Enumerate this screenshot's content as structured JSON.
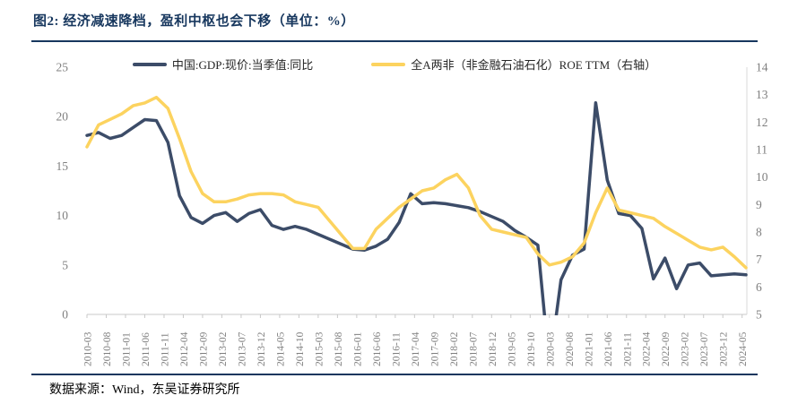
{
  "title": "图2:  经济减速降档，盈利中枢也会下移（单位：%）",
  "footer": {
    "source_label": "数据来源：Wind，东吴证券研究所"
  },
  "colors": {
    "navy_line": "#3C4C68",
    "yellow_line": "#FCD35F",
    "rule": "#17375E",
    "axis_text": "#7F7F7F",
    "axis_line": "#C8C8C8"
  },
  "chart_data": {
    "type": "line",
    "title": "图2: 经济减速降档，盈利中枢也会下移（单位：%）",
    "grid": false,
    "legend_position": "top",
    "x": [
      "2010-03",
      "2010-06",
      "2010-09",
      "2010-12",
      "2011-03",
      "2011-06",
      "2011-09",
      "2011-12",
      "2012-03",
      "2012-06",
      "2012-09",
      "2012-12",
      "2013-03",
      "2013-06",
      "2013-09",
      "2013-12",
      "2014-03",
      "2014-06",
      "2014-09",
      "2014-12",
      "2015-03",
      "2015-06",
      "2015-09",
      "2015-12",
      "2016-03",
      "2016-06",
      "2016-09",
      "2016-12",
      "2017-03",
      "2017-06",
      "2017-09",
      "2017-12",
      "2018-03",
      "2018-06",
      "2018-09",
      "2018-12",
      "2019-03",
      "2019-06",
      "2019-09",
      "2019-12",
      "2020-03",
      "2020-06",
      "2020-09",
      "2020-12",
      "2021-03",
      "2021-06",
      "2021-09",
      "2021-12",
      "2022-03",
      "2022-06",
      "2022-09",
      "2022-12",
      "2023-03",
      "2023-06",
      "2023-09",
      "2023-12",
      "2024-03",
      "2024-06"
    ],
    "x_tick_labels": [
      "2010-03",
      "2010-08",
      "2011-01",
      "2011-06",
      "2011-11",
      "2012-04",
      "2012-09",
      "2013-02",
      "2013-07",
      "2013-12",
      "2014-05",
      "2014-10",
      "2015-03",
      "2015-08",
      "2016-01",
      "2016-06",
      "2016-11",
      "2017-04",
      "2017-09",
      "2018-02",
      "2018-07",
      "2018-12",
      "2019-05",
      "2019-10",
      "2020-03",
      "2020-08",
      "2021-01",
      "2021-06",
      "2021-11",
      "2022-04",
      "2022-09",
      "2023-02",
      "2023-07",
      "2023-12",
      "2024-05"
    ],
    "left_axis": {
      "min": 0,
      "max": 25,
      "ticks": [
        25,
        20,
        15,
        10,
        5,
        0
      ]
    },
    "right_axis": {
      "min": 5,
      "max": 14,
      "ticks": [
        14,
        13,
        12,
        11,
        10,
        9,
        8,
        7,
        6,
        5
      ]
    },
    "series": [
      {
        "name": "中国:GDP:现价:当季值:同比",
        "axis": "left",
        "color": "#3C4C68",
        "values": [
          18.1,
          18.4,
          17.8,
          18.1,
          18.9,
          19.7,
          19.6,
          17.4,
          12.0,
          9.8,
          9.2,
          10.0,
          10.3,
          9.4,
          10.2,
          10.6,
          9.0,
          8.6,
          8.9,
          8.6,
          8.1,
          7.6,
          7.1,
          6.6,
          6.5,
          6.9,
          7.6,
          9.3,
          12.2,
          11.2,
          11.3,
          11.2,
          11.0,
          10.8,
          10.4,
          9.9,
          9.4,
          8.5,
          7.8,
          7.0,
          -5.3,
          3.5,
          6.0,
          6.6,
          21.4,
          13.6,
          10.2,
          10.0,
          8.7,
          3.6,
          5.7,
          2.6,
          5.0,
          5.2,
          3.9,
          4.0,
          4.1,
          4.0
        ]
      },
      {
        "name": "全A两非（非金融石油石化）ROE TTM（右轴）",
        "axis": "right",
        "color": "#FCD35F",
        "values": [
          11.1,
          11.9,
          12.1,
          12.3,
          12.6,
          12.7,
          12.9,
          12.5,
          11.4,
          10.2,
          9.4,
          9.1,
          9.1,
          9.2,
          9.35,
          9.4,
          9.4,
          9.35,
          9.1,
          9.0,
          8.9,
          8.4,
          7.9,
          7.4,
          7.4,
          8.1,
          8.5,
          8.9,
          9.2,
          9.5,
          9.6,
          9.9,
          10.1,
          9.6,
          8.6,
          8.1,
          8.0,
          7.9,
          7.8,
          7.2,
          6.8,
          6.9,
          7.1,
          7.6,
          8.7,
          9.6,
          8.8,
          8.7,
          8.6,
          8.5,
          8.2,
          7.95,
          7.7,
          7.45,
          7.35,
          7.45,
          7.1,
          6.7
        ]
      }
    ]
  }
}
